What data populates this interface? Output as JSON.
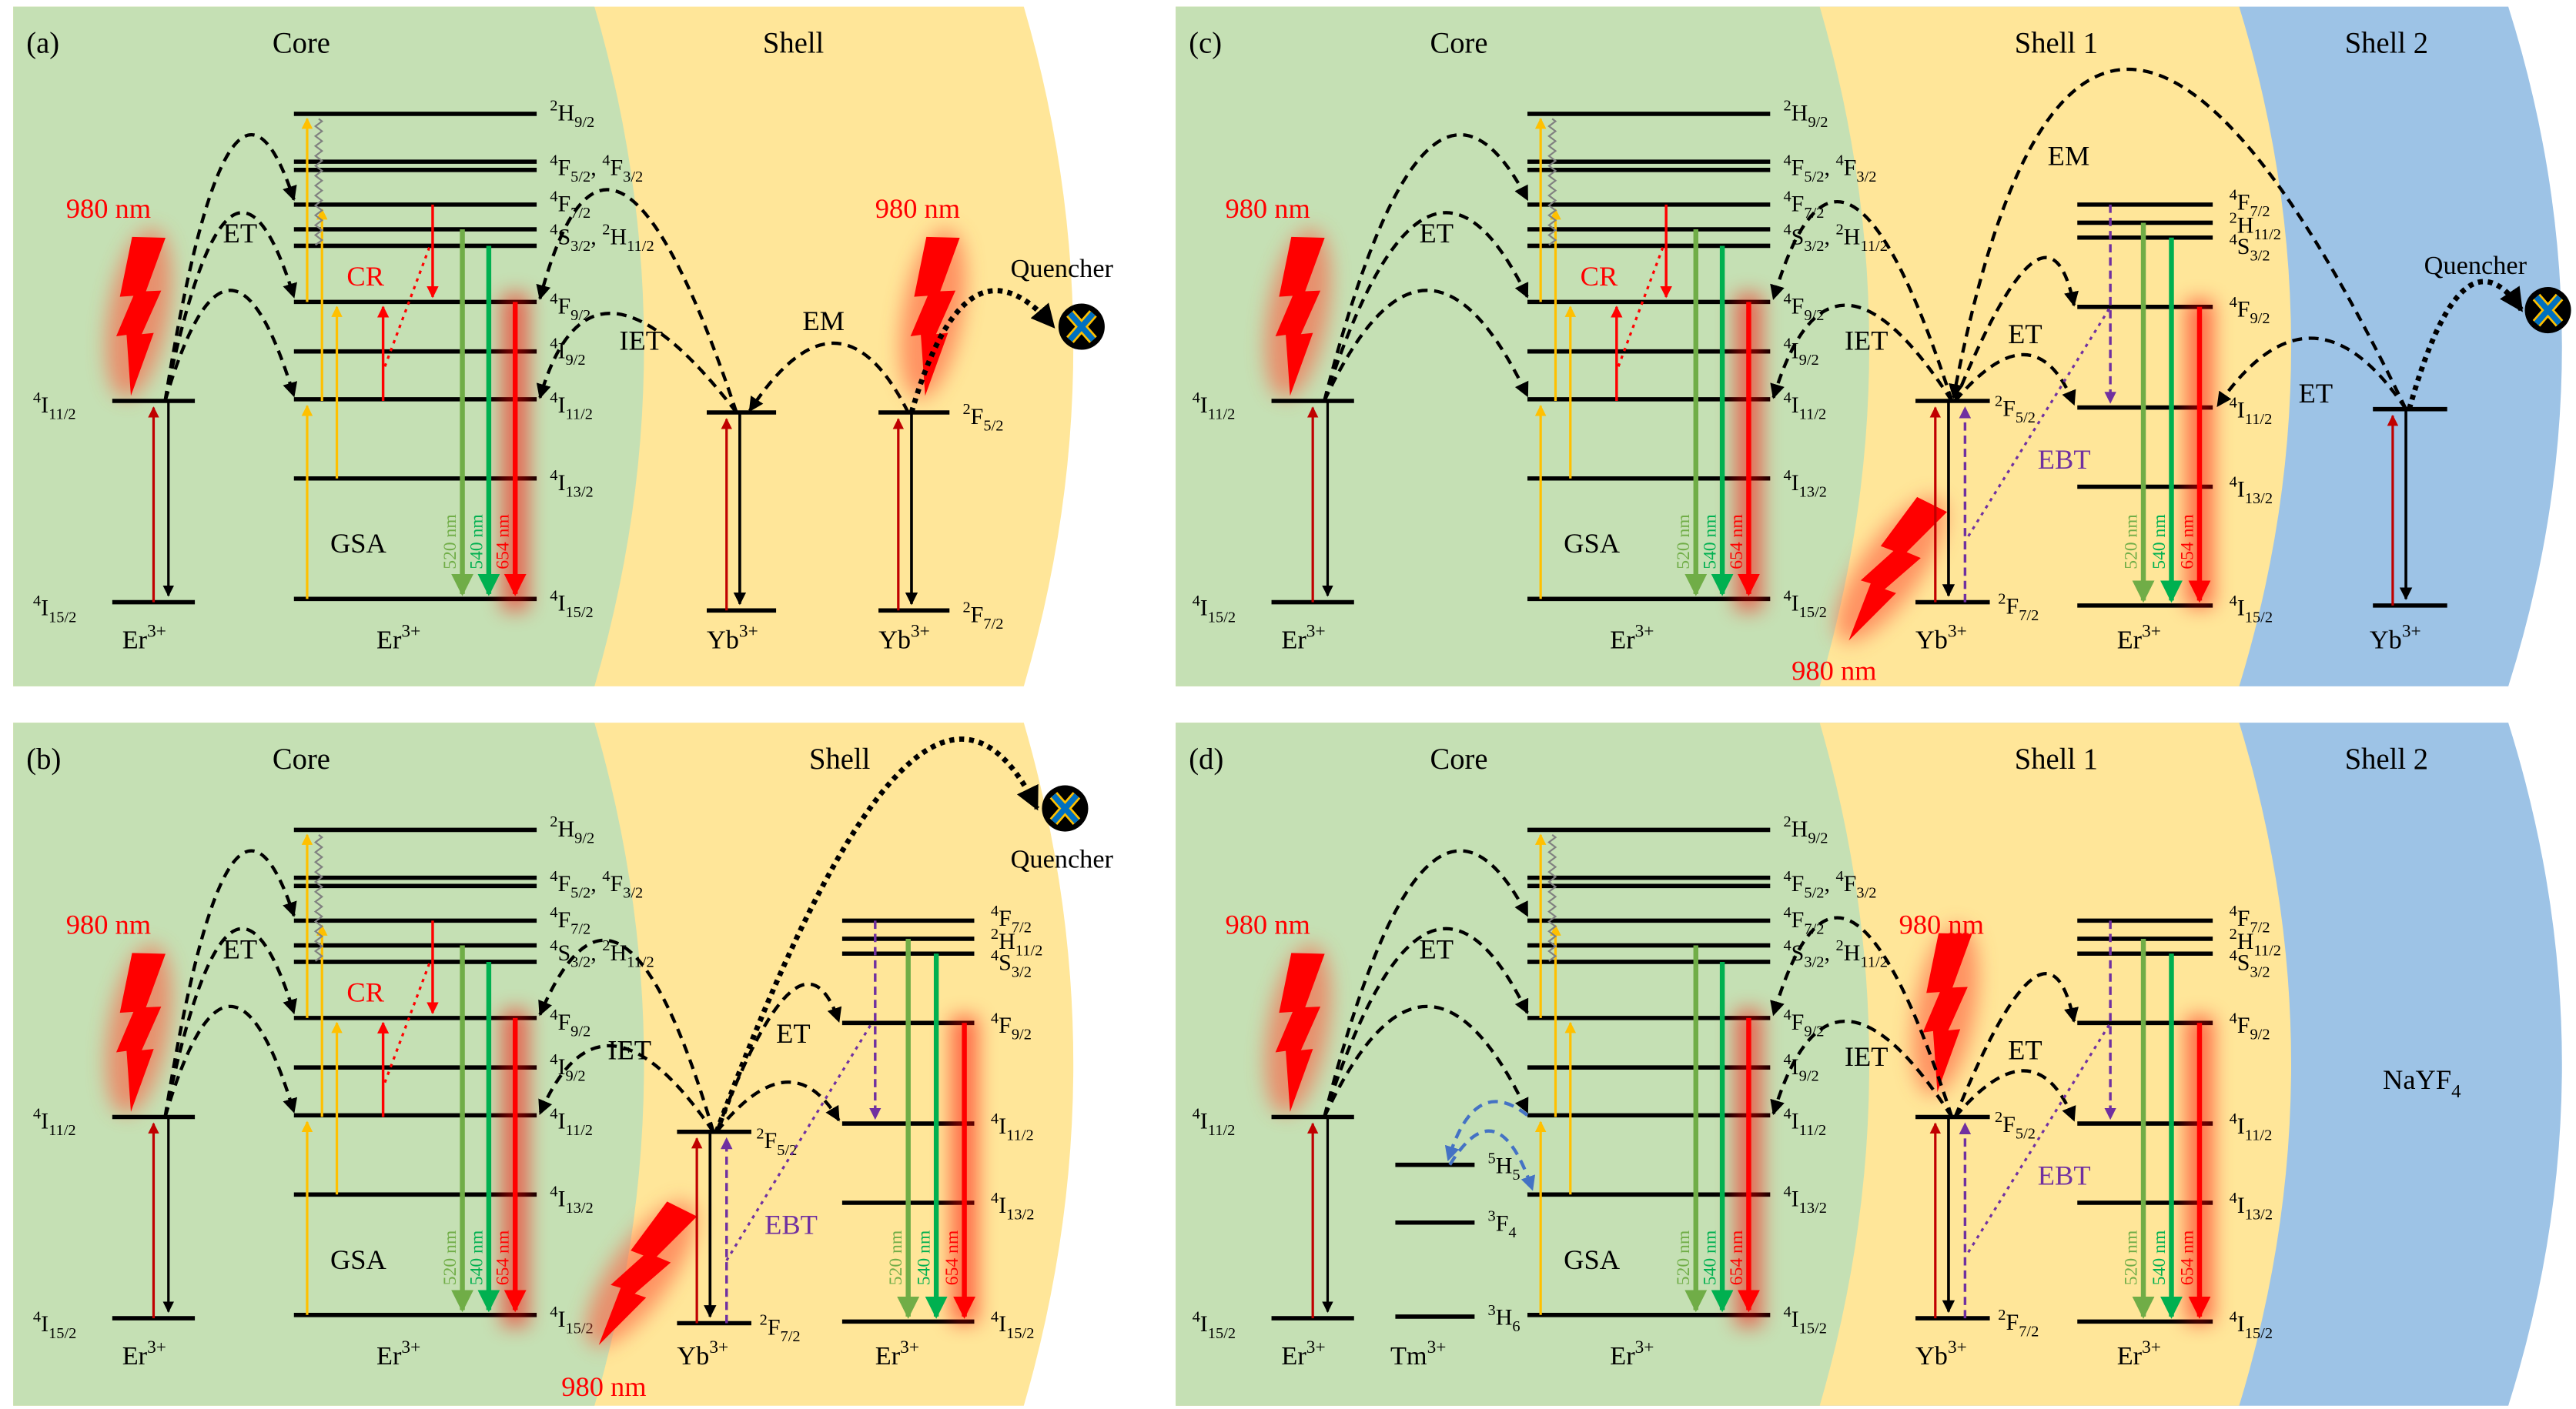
{
  "colors": {
    "core": "#c5e0b4",
    "shell": "#ffe699",
    "shell2": "#9dc3e6",
    "black": "#000000",
    "excitation": "#ff0000",
    "absorb": "#c00000",
    "gsa": "#ffc000",
    "em520": "#70ad47",
    "em540": "#00b050",
    "em654": "#ff0000",
    "ebt": "#7030a0",
    "tm": "#4472c4",
    "quencher_cross": "#0070c0",
    "quencher_outline": "#ffc000",
    "wavy": "#808080"
  },
  "panels": [
    {
      "label": "(a)",
      "regions": [
        "Core",
        "Shell"
      ],
      "core": {
        "excitation": "980 nm",
        "left_ion": "Er3+",
        "left_levels": [
          "4I11/2",
          "4I15/2"
        ],
        "ion": "Er3+",
        "levels": [
          "2H9/2",
          "4F5/2, 4F3/2",
          "4F7/2",
          "4S3/2, 2H11/2",
          "4F9/2",
          "4I9/2",
          "4I11/2",
          "4I13/2",
          "4I15/2"
        ],
        "processes": {
          "et": "ET",
          "cr": "CR",
          "gsa": "GSA"
        },
        "emission": [
          "520 nm",
          "540 nm",
          "654 nm"
        ]
      },
      "shell": {
        "processes": {
          "iet": "IET",
          "em": "EM"
        },
        "excitation": "980 nm",
        "ions": [
          "Yb3+",
          "Yb3+"
        ],
        "yb_levels": [
          "2F5/2",
          "2F7/2"
        ],
        "quencher": "Quencher",
        "quencher_icon": "quencher-x-icon"
      }
    },
    {
      "label": "(b)",
      "regions": [
        "Core",
        "Shell"
      ],
      "core": {
        "excitation": "980 nm",
        "left_ion": "Er3+",
        "left_levels": [
          "4I11/2",
          "4I15/2"
        ],
        "ion": "Er3+",
        "levels": [
          "2H9/2",
          "4F5/2, 4F3/2",
          "4F7/2",
          "4S3/2, 2H11/2",
          "4F9/2",
          "4I9/2",
          "4I11/2",
          "4I13/2",
          "4I15/2"
        ],
        "processes": {
          "et": "ET",
          "cr": "CR",
          "gsa": "GSA"
        },
        "emission": [
          "520 nm",
          "540 nm",
          "654 nm"
        ]
      },
      "shell": {
        "processes": {
          "iet": "IET",
          "et": "ET",
          "ebt": "EBT"
        },
        "excitation": "980 nm",
        "ions": [
          "Yb3+",
          "Er3+"
        ],
        "yb_levels": [
          "2F5/2",
          "2F7/2"
        ],
        "er_levels": [
          "4F7/2",
          "2H11/2",
          "4S3/2",
          "4F9/2",
          "4I11/2",
          "4I13/2",
          "4I15/2"
        ],
        "emission": [
          "520 nm",
          "540 nm",
          "654 nm"
        ],
        "quencher": "Quencher",
        "quencher_icon": "quencher-x-icon"
      }
    },
    {
      "label": "(c)",
      "regions": [
        "Core",
        "Shell 1",
        "Shell 2"
      ],
      "core": {
        "excitation": "980 nm",
        "left_ion": "Er3+",
        "left_levels": [
          "4I11/2",
          "4I15/2"
        ],
        "ion": "Er3+",
        "levels": [
          "2H9/2",
          "4F5/2, 4F3/2",
          "4F7/2",
          "4S3/2, 2H11/2",
          "4F9/2",
          "4I9/2",
          "4I11/2",
          "4I13/2",
          "4I15/2"
        ],
        "processes": {
          "et": "ET",
          "cr": "CR",
          "gsa": "GSA"
        },
        "emission": [
          "520 nm",
          "540 nm",
          "654 nm"
        ]
      },
      "shell": {
        "processes": {
          "iet": "IET",
          "et": "ET",
          "ebt": "EBT",
          "em": "EM"
        },
        "excitation": "980 nm",
        "ions": [
          "Yb3+",
          "Er3+"
        ],
        "yb_levels": [
          "2F5/2",
          "2F7/2"
        ],
        "er_levels": [
          "4F7/2",
          "2H11/2",
          "4S3/2",
          "4F9/2",
          "4I11/2",
          "4I13/2",
          "4I15/2"
        ],
        "emission": [
          "520 nm",
          "540 nm",
          "654 nm"
        ]
      },
      "shell2": {
        "ion": "Yb3+",
        "processes": {
          "et": "ET"
        },
        "quencher": "Quencher",
        "quencher_icon": "quencher-x-icon"
      }
    },
    {
      "label": "(d)",
      "regions": [
        "Core",
        "Shell 1",
        "Shell 2"
      ],
      "core": {
        "excitation": "980 nm",
        "left_ion": "Er3+",
        "left_levels": [
          "4I11/2",
          "4I15/2"
        ],
        "tm_ion": "Tm3+",
        "tm_levels": [
          "5H5",
          "3F4",
          "3H6"
        ],
        "ion": "Er3+",
        "levels": [
          "2H9/2",
          "4F5/2, 4F3/2",
          "4F7/2",
          "4S3/2, 2H11/2",
          "4F9/2",
          "4I9/2",
          "4I11/2",
          "4I13/2",
          "4I15/2"
        ],
        "processes": {
          "et": "ET",
          "gsa": "GSA"
        },
        "emission": [
          "520 nm",
          "540 nm",
          "654 nm"
        ]
      },
      "shell": {
        "processes": {
          "iet": "IET",
          "et": "ET",
          "ebt": "EBT"
        },
        "excitation": "980 nm",
        "ions": [
          "Yb3+",
          "Er3+"
        ],
        "yb_levels": [
          "2F5/2",
          "2F7/2"
        ],
        "er_levels": [
          "4F7/2",
          "2H11/2",
          "4S3/2",
          "4F9/2",
          "4I11/2",
          "4I13/2",
          "4I15/2"
        ],
        "emission": [
          "520 nm",
          "540 nm",
          "654 nm"
        ]
      },
      "shell2": {
        "material": "NaYF4"
      }
    }
  ]
}
